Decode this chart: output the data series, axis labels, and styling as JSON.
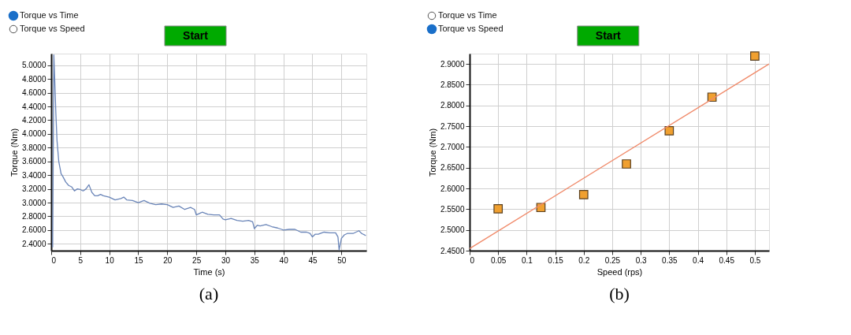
{
  "chart_data": [
    {
      "type": "line",
      "xlabel": "Time (s)",
      "ylabel": "Torque (Nm)",
      "annotations": [
        "Torque vs Time",
        "Torque vs Speed",
        "Start",
        "(a)"
      ],
      "x": [
        0.25,
        0.45,
        0.6,
        0.8,
        1.0,
        1.3,
        1.7,
        2.0,
        2.5,
        3.0,
        3.5,
        4.0,
        4.5,
        5.0,
        5.5,
        6.0,
        6.5,
        7.0,
        7.5,
        8.0,
        8.5,
        9.0,
        10.0,
        11.0,
        12.0,
        12.5,
        13.0,
        14.0,
        15.0,
        16.0,
        17.0,
        18.0,
        19.0,
        20.0,
        21.0,
        22.0,
        23.0,
        24.0,
        24.7,
        25.0,
        26.0,
        27.0,
        28.0,
        29.0,
        29.6,
        30.0,
        31.0,
        32.0,
        33.0,
        34.0,
        34.7,
        35.0,
        35.5,
        36.0,
        37.0,
        38.0,
        39.0,
        39.7,
        40.0,
        41.0,
        42.0,
        43.0,
        44.0,
        44.6,
        45.0,
        45.5,
        46.0,
        47.0,
        48.0,
        49.0,
        49.4,
        49.6,
        50.0,
        50.5,
        51.0,
        52.0,
        53.0,
        53.5,
        54.2
      ],
      "series": [
        {
          "color": "#6a85b8",
          "values": [
            2.35,
            5.15,
            4.8,
            4.3,
            3.9,
            3.6,
            3.42,
            3.38,
            3.3,
            3.25,
            3.23,
            3.17,
            3.2,
            3.19,
            3.17,
            3.2,
            3.26,
            3.15,
            3.1,
            3.1,
            3.12,
            3.1,
            3.08,
            3.04,
            3.06,
            3.08,
            3.04,
            3.03,
            3.0,
            3.03,
            2.99,
            2.97,
            2.98,
            2.97,
            2.93,
            2.95,
            2.9,
            2.93,
            2.9,
            2.82,
            2.86,
            2.83,
            2.82,
            2.82,
            2.76,
            2.75,
            2.77,
            2.74,
            2.73,
            2.74,
            2.72,
            2.62,
            2.67,
            2.66,
            2.68,
            2.65,
            2.63,
            2.61,
            2.6,
            2.61,
            2.61,
            2.57,
            2.57,
            2.55,
            2.5,
            2.54,
            2.54,
            2.57,
            2.56,
            2.56,
            2.5,
            2.31,
            2.48,
            2.53,
            2.55,
            2.55,
            2.59,
            2.55,
            2.52
          ]
        }
      ],
      "xlim": [
        0,
        54.3
      ],
      "xticks": [
        0,
        5,
        10,
        15,
        20,
        25,
        30,
        35,
        40,
        45,
        50
      ],
      "ylim": [
        2.3,
        5.17
      ],
      "yticks": [
        {
          "value": 2.4,
          "label": "2.4000"
        },
        {
          "value": 2.6,
          "label": "2.6000"
        },
        {
          "value": 2.8,
          "label": "2.8000"
        },
        {
          "value": 3.0,
          "label": "3.0000"
        },
        {
          "value": 3.2,
          "label": "3.2000"
        },
        {
          "value": 3.4,
          "label": "3.4000"
        },
        {
          "value": 3.6,
          "label": "3.6000"
        },
        {
          "value": 3.8,
          "label": "3.8000"
        },
        {
          "value": 4.0,
          "label": "4.0000"
        },
        {
          "value": 4.2,
          "label": "4.2000"
        },
        {
          "value": 4.4,
          "label": "4.4000"
        },
        {
          "value": 4.6,
          "label": "4.6000"
        },
        {
          "value": 4.8,
          "label": "4.8000"
        },
        {
          "value": 5.0,
          "label": "5.0000"
        }
      ],
      "grid": true,
      "marker": "none",
      "line_style": "solid"
    },
    {
      "type": "scatter",
      "xlabel": "Speed (rps)",
      "ylabel": "Torque (Nm)",
      "annotations": [
        "Torque vs Time",
        "Torque vs Speed",
        "Start",
        "(b)"
      ],
      "x": [
        0.05,
        0.125,
        0.2,
        0.275,
        0.35,
        0.425,
        0.5
      ],
      "series": [
        {
          "color": "#f0a030",
          "marker": "square",
          "values": [
            2.551,
            2.554,
            2.585,
            2.659,
            2.739,
            2.82,
            2.919
          ]
        },
        {
          "type": "line",
          "color": "#f08a6a",
          "marker": "none",
          "x": [
            0,
            0.525
          ],
          "values": [
            2.455,
            2.9
          ]
        }
      ],
      "xlim": [
        0,
        0.525
      ],
      "xticks": [
        0,
        0.05,
        0.1,
        0.15,
        0.2,
        0.25,
        0.3,
        0.35,
        0.4,
        0.45,
        0.5
      ],
      "ylim": [
        2.45,
        2.925
      ],
      "yticks": [
        {
          "value": 2.45,
          "label": "2.4500"
        },
        {
          "value": 2.5,
          "label": "2.5000"
        },
        {
          "value": 2.55,
          "label": "2.5500"
        },
        {
          "value": 2.6,
          "label": "2.6000"
        },
        {
          "value": 2.65,
          "label": "2.6500"
        },
        {
          "value": 2.7,
          "label": "2.7000"
        },
        {
          "value": 2.75,
          "label": "2.7500"
        },
        {
          "value": 2.8,
          "label": "2.8000"
        },
        {
          "value": 2.85,
          "label": "2.8500"
        },
        {
          "value": 2.9,
          "label": "2.9000"
        }
      ],
      "grid": true
    }
  ]
}
